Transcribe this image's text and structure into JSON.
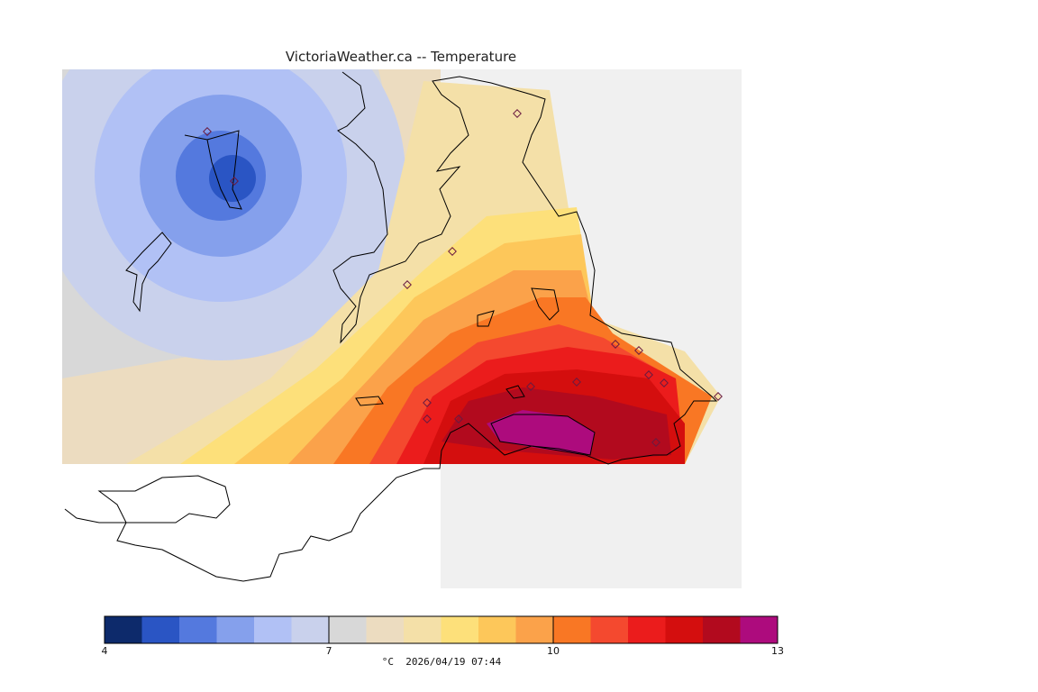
{
  "title": "VictoriaWeather.ca  --  Temperature",
  "footer": {
    "unit": "°C",
    "timestamp": "2026/04/19 07:44"
  },
  "colors": {
    "background_land": "#f0f0f0",
    "palette": [
      "#0d2a6b",
      "#2a55c4",
      "#5479de",
      "#85a0ec",
      "#b1c1f5",
      "#c9d1ec",
      "#d8d8d8",
      "#ecdcc0",
      "#f4e0a8",
      "#fde07a",
      "#fdc75a",
      "#fba24a",
      "#f97724",
      "#f4492f",
      "#eb1c1c",
      "#d40e0e",
      "#b20a1e",
      "#ad0b7d"
    ]
  },
  "legend": {
    "min": 4,
    "max": 13,
    "step": 0.5,
    "ticks": [
      {
        "label": "4",
        "value": 4
      },
      {
        "label": "7",
        "value": 7
      },
      {
        "label": "10",
        "value": 10
      },
      {
        "label": "13",
        "value": 13
      }
    ]
  },
  "stations_count": 16
}
